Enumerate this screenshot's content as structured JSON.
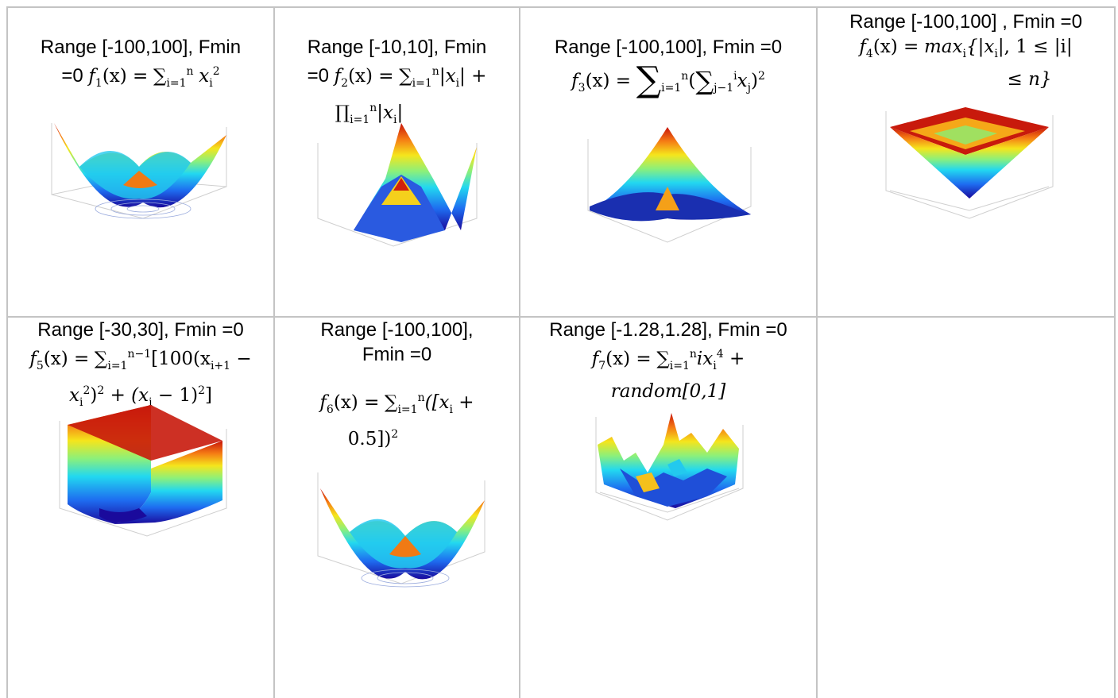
{
  "cells": [
    {
      "range": "Range [-100,100], Fmin",
      "fmin_tail": "=0",
      "func": "f1"
    },
    {
      "range": "Range [-10,10], Fmin",
      "fmin_tail": "=0",
      "func": "f2"
    },
    {
      "range": "Range [-100,100], Fmin =0",
      "func": "f3"
    },
    {
      "range": "Range [-100,100] , Fmin =0",
      "func": "f4"
    },
    {
      "range": "Range [-30,30], Fmin =0",
      "func": "f5"
    },
    {
      "range": "Range [-100,100],",
      "fmin_tail": "Fmin =0",
      "func": "f6"
    },
    {
      "range": "Range [-1.28,1.28], Fmin =0",
      "func": "f7"
    }
  ],
  "formulas": {
    "f1": {
      "lhs": "f",
      "sub": "1",
      "arg": "(x) =",
      "body": "∑",
      "lim_sub": "i=1",
      "lim_sup": "n",
      "term": "x",
      "term_sub": "i",
      "term_sup": "2"
    },
    "f2": {
      "lhs": "f",
      "sub": "2",
      "arg": "(x) =",
      "line1": "∑",
      "lim_sub": "i=1",
      "lim_sup": "n",
      "abs": "|x",
      "abs_sub": "i",
      "abs_end": "| +",
      "prod": "∏",
      "prod_sub": "i=1",
      "prod_sup": "n",
      "prod_term": "|x",
      "prod_term_sub": "i",
      "prod_term_end": "|"
    },
    "f3": {
      "lhs": "f",
      "sub": "3",
      "arg": "(x) =",
      "sum": "∑",
      "lim_sub": "i=1",
      "lim_sup": "n",
      "inner_open": "(",
      "inner_sum": "∑",
      "inner_sub": "j−1",
      "inner_sup": "i",
      "term": "x",
      "term_sub": "j",
      "close": ")",
      "close_sup": "2"
    },
    "f4": {
      "lhs": "f",
      "sub": "4",
      "arg": "(x) =",
      "body": "max",
      "body_sub": "i",
      "set": "{|x",
      "set_sub": "i",
      "set_mid": "|, 1 ≤ |i|",
      "line2": "≤ n}"
    },
    "f5": {
      "lhs": "f",
      "sub": "5",
      "arg": "(x) =",
      "sum": "∑",
      "lim_sub": "i=1",
      "lim_sup": "n−1",
      "part1": "[100(x",
      "part1_sub": "i+1",
      "part1_end": " −",
      "part2": "x",
      "part2_sub": "i",
      "part2_sup": "2",
      "part2_mid": ")",
      "part2_sup2": "2",
      "part3": " + (x",
      "part3_sub": "i",
      "part3_end": " − 1)",
      "part3_sup": "2",
      "part4": "]"
    },
    "f6": {
      "lhs": "f",
      "sub": "6",
      "arg": "(x) =",
      "sum": "∑",
      "lim_sub": "i=1",
      "lim_sup": "n",
      "part1": "([x",
      "part1_sub": "i",
      "part1_end": " +",
      "line2": "0.5])",
      "line2_sup": "2"
    },
    "f7": {
      "lhs": "f",
      "sub": "7",
      "arg": "(x) =",
      "sum": "∑",
      "lim_sub": "i=1",
      "lim_sup": "n",
      "term": "ix",
      "term_sub": "i",
      "term_sup": "4",
      "term_end": " +",
      "line2": "random[0,1]"
    }
  }
}
